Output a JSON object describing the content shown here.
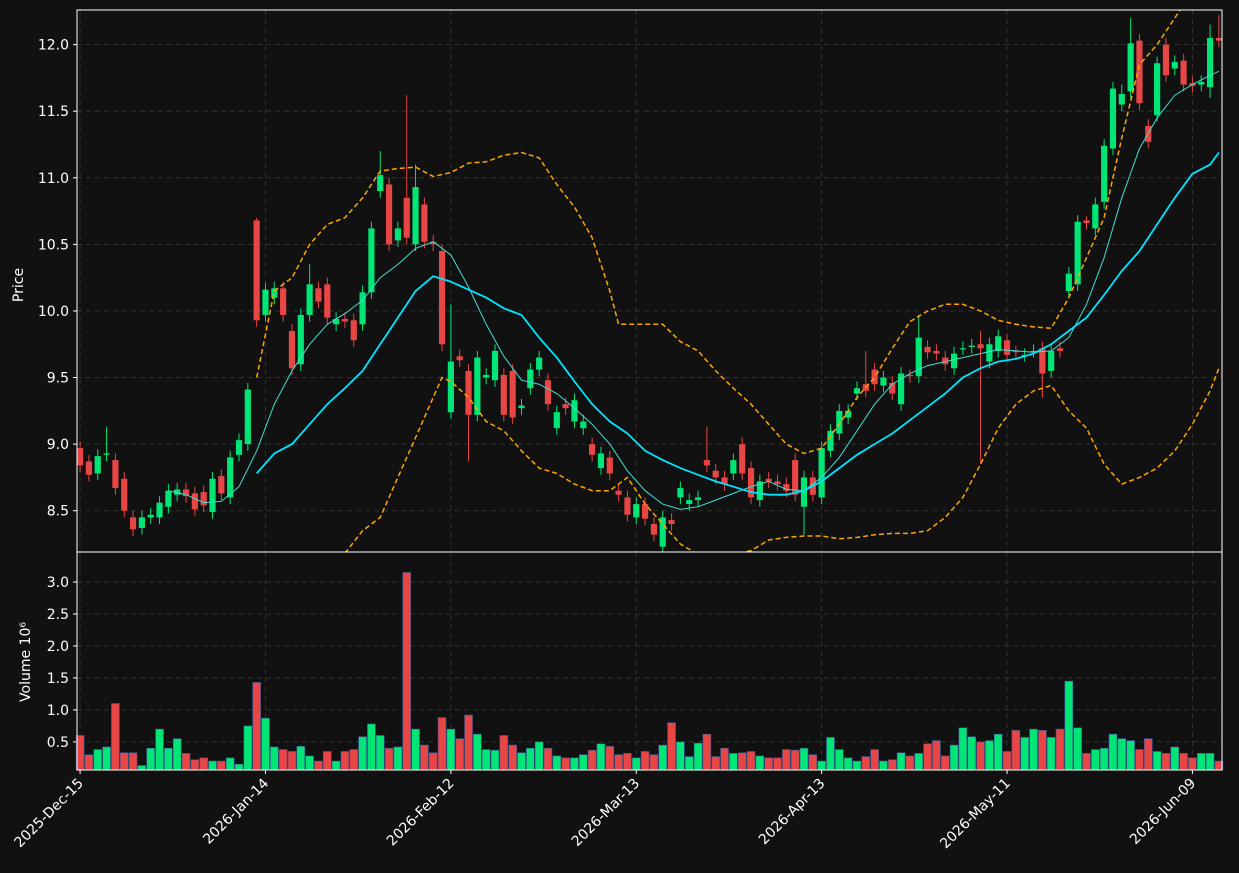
{
  "chart_data": {
    "type": "candlestick",
    "grid": true,
    "up_color": "#00e676",
    "down_color": "#e84545",
    "xlim": [
      -0.35,
      129.35
    ],
    "xticks": [
      {
        "value": 0,
        "label": "2025-Dec-15"
      },
      {
        "value": 21,
        "label": "2026-Jan-14"
      },
      {
        "value": 42,
        "label": "2026-Feb-12"
      },
      {
        "value": 63,
        "label": "2026-Mar-13"
      },
      {
        "value": 84,
        "label": "2026-Apr-13"
      },
      {
        "value": 105,
        "label": "2026-May-11"
      },
      {
        "value": 126,
        "label": "2026-Jun-09"
      }
    ],
    "ylabel": "Price",
    "ylim": [
      8.19,
      12.26
    ],
    "yticks": [
      8.5,
      {
        "value": 9.0,
        "label": "9.0"
      },
      9.5,
      {
        "value": 10.0,
        "label": "10.0"
      },
      10.5,
      {
        "value": 11.0,
        "label": "11.0"
      },
      11.5,
      {
        "value": 12.0,
        "label": "12.0"
      }
    ],
    "open": [
      8.97,
      8.87,
      8.78,
      8.92,
      8.88,
      8.74,
      8.45,
      8.37,
      8.45,
      8.45,
      8.53,
      8.62,
      8.66,
      8.63,
      8.64,
      8.49,
      8.76,
      8.6,
      8.92,
      9.0,
      10.68,
      9.97,
      10.1,
      10.17,
      9.85,
      9.6,
      9.97,
      10.17,
      10.2,
      9.9,
      9.94,
      9.93,
      9.9,
      10.14,
      10.9,
      10.95,
      10.53,
      10.85,
      10.5,
      10.8,
      10.52,
      10.45,
      9.24,
      9.66,
      9.55,
      9.22,
      9.5,
      9.48,
      9.52,
      9.55,
      9.27,
      9.42,
      9.56,
      9.48,
      9.12,
      9.3,
      9.17,
      9.12,
      9.0,
      8.82,
      8.9,
      8.65,
      8.6,
      8.45,
      8.55,
      8.4,
      8.23,
      8.43,
      8.6,
      8.55,
      8.58,
      8.88,
      8.8,
      8.75,
      8.78,
      9.0,
      8.82,
      8.58,
      8.74,
      8.72,
      8.7,
      8.88,
      8.53,
      8.75,
      8.6,
      8.95,
      9.08,
      9.2,
      9.38,
      9.45,
      9.56,
      9.44,
      9.46,
      9.3,
      9.52,
      9.51,
      9.73,
      9.7,
      9.65,
      9.57,
      9.72,
      9.73,
      9.75,
      9.62,
      9.7,
      9.78,
      9.7,
      9.67,
      9.7,
      9.72,
      9.55,
      9.72,
      10.15,
      10.2,
      10.68,
      10.62,
      10.82,
      11.22,
      11.55,
      11.65,
      12.03,
      11.39,
      11.47,
      12.0,
      11.82,
      11.88,
      11.71,
      11.7,
      11.68,
      12.05
    ],
    "high": [
      9.02,
      8.92,
      8.96,
      9.13,
      8.93,
      8.79,
      8.5,
      8.5,
      8.52,
      8.61,
      8.7,
      8.71,
      8.71,
      8.68,
      8.69,
      8.79,
      8.81,
      8.95,
      9.08,
      9.46,
      10.7,
      10.21,
      10.22,
      10.22,
      9.9,
      10.02,
      10.35,
      10.22,
      10.25,
      9.99,
      9.99,
      9.98,
      10.19,
      10.67,
      11.2,
      11.0,
      10.67,
      11.62,
      11.1,
      10.85,
      10.57,
      10.5,
      10.05,
      9.71,
      9.6,
      9.7,
      9.57,
      9.75,
      9.57,
      9.6,
      9.34,
      9.61,
      9.7,
      9.53,
      9.29,
      9.35,
      9.38,
      9.22,
      9.05,
      8.98,
      8.95,
      8.7,
      8.65,
      8.6,
      8.6,
      8.45,
      8.5,
      8.48,
      8.72,
      8.63,
      8.65,
      9.13,
      8.85,
      8.8,
      8.93,
      9.05,
      8.87,
      8.77,
      8.79,
      8.77,
      8.75,
      8.93,
      8.8,
      8.8,
      9.02,
      9.15,
      9.3,
      9.3,
      9.47,
      9.7,
      9.61,
      9.55,
      9.51,
      9.58,
      9.56,
      9.97,
      9.78,
      9.75,
      9.7,
      9.73,
      9.77,
      9.79,
      9.85,
      9.8,
      9.86,
      9.83,
      9.74,
      9.72,
      9.75,
      9.77,
      9.75,
      9.77,
      10.33,
      10.72,
      10.71,
      10.85,
      11.29,
      11.72,
      11.7,
      12.2,
      12.08,
      11.44,
      11.91,
      12.05,
      11.92,
      11.93,
      11.76,
      11.77,
      12.15,
      12.22
    ],
    "low": [
      8.79,
      8.72,
      8.73,
      8.87,
      8.62,
      8.45,
      8.31,
      8.32,
      8.4,
      8.4,
      8.48,
      8.57,
      8.56,
      8.46,
      8.49,
      8.44,
      8.58,
      8.55,
      8.87,
      8.95,
      9.88,
      9.92,
      10.05,
      9.92,
      9.52,
      9.55,
      9.92,
      10.02,
      9.9,
      9.85,
      9.87,
      9.73,
      9.85,
      10.09,
      10.85,
      10.45,
      10.48,
      10.5,
      10.45,
      10.47,
      10.45,
      9.7,
      9.19,
      9.58,
      8.87,
      9.17,
      9.45,
      9.43,
      9.17,
      9.15,
      9.22,
      9.37,
      9.51,
      9.25,
      9.07,
      9.22,
      9.12,
      9.07,
      8.87,
      8.77,
      8.73,
      8.57,
      8.42,
      8.4,
      8.39,
      8.27,
      8.18,
      8.35,
      8.55,
      8.5,
      8.53,
      8.79,
      8.7,
      8.65,
      8.73,
      8.73,
      8.55,
      8.53,
      8.67,
      8.65,
      8.6,
      8.57,
      8.32,
      8.57,
      8.55,
      8.9,
      9.03,
      9.15,
      9.33,
      9.35,
      9.4,
      9.39,
      9.33,
      9.25,
      9.46,
      9.46,
      9.64,
      9.63,
      9.55,
      9.52,
      9.67,
      9.68,
      8.85,
      9.57,
      9.65,
      9.62,
      9.64,
      9.62,
      9.65,
      9.35,
      9.5,
      9.65,
      10.1,
      10.15,
      10.61,
      10.57,
      10.77,
      11.17,
      11.5,
      11.6,
      11.51,
      11.22,
      11.42,
      11.72,
      11.77,
      11.65,
      11.64,
      11.65,
      11.6,
      11.98
    ],
    "close": [
      8.84,
      8.77,
      8.91,
      8.93,
      8.67,
      8.5,
      8.36,
      8.45,
      8.47,
      8.56,
      8.65,
      8.66,
      8.61,
      8.51,
      8.54,
      8.74,
      8.63,
      8.9,
      9.03,
      9.41,
      9.93,
      10.16,
      10.17,
      9.97,
      9.57,
      9.97,
      10.2,
      10.07,
      9.95,
      9.94,
      9.92,
      9.78,
      10.14,
      10.62,
      11.02,
      10.5,
      10.62,
      10.55,
      10.93,
      10.52,
      10.5,
      9.75,
      9.62,
      9.63,
      9.22,
      9.65,
      9.52,
      9.7,
      9.22,
      9.2,
      9.29,
      9.56,
      9.65,
      9.3,
      9.24,
      9.27,
      9.33,
      9.17,
      8.92,
      8.93,
      8.78,
      8.62,
      8.47,
      8.55,
      8.44,
      8.32,
      8.45,
      8.4,
      8.67,
      8.58,
      8.6,
      8.84,
      8.75,
      8.7,
      8.88,
      8.78,
      8.6,
      8.72,
      8.72,
      8.7,
      8.65,
      8.62,
      8.75,
      8.62,
      8.97,
      9.1,
      9.25,
      9.25,
      9.42,
      9.4,
      9.45,
      9.5,
      9.38,
      9.53,
      9.51,
      9.8,
      9.69,
      9.68,
      9.6,
      9.68,
      9.72,
      9.74,
      9.72,
      9.75,
      9.81,
      9.67,
      9.69,
      9.67,
      9.7,
      9.53,
      9.7,
      9.7,
      10.28,
      10.67,
      10.66,
      10.8,
      11.24,
      11.67,
      11.63,
      12.01,
      11.56,
      11.27,
      11.86,
      11.77,
      11.87,
      11.7,
      11.69,
      11.72,
      12.05,
      12.03
    ],
    "lines": [
      {
        "color": "#40e0d0",
        "width": 1,
        "dashed": false,
        "x": [
          10,
          12,
          14,
          16,
          18,
          20,
          22,
          24,
          26,
          28,
          30,
          32,
          34,
          36,
          38,
          40,
          42,
          44,
          46,
          48,
          50,
          52,
          54,
          56,
          58,
          60,
          62,
          64,
          66,
          68,
          70,
          72,
          74,
          76,
          78,
          80,
          82,
          84,
          86,
          88,
          90,
          92,
          94,
          96,
          98,
          100,
          102,
          104,
          106,
          108,
          110,
          112,
          114,
          116,
          118,
          120,
          122,
          124,
          126,
          128,
          129
        ],
        "values": [
          8.65,
          8.62,
          8.56,
          8.57,
          8.68,
          8.95,
          9.3,
          9.55,
          9.75,
          9.9,
          9.98,
          10.08,
          10.25,
          10.35,
          10.47,
          10.52,
          10.42,
          10.18,
          9.9,
          9.66,
          9.48,
          9.45,
          9.38,
          9.27,
          9.15,
          9.0,
          8.8,
          8.65,
          8.55,
          8.51,
          8.53,
          8.58,
          8.63,
          8.68,
          8.72,
          8.66,
          8.65,
          8.75,
          8.9,
          9.1,
          9.3,
          9.45,
          9.53,
          9.59,
          9.62,
          9.65,
          9.68,
          9.71,
          9.7,
          9.69,
          9.7,
          9.8,
          10.05,
          10.4,
          10.85,
          11.22,
          11.45,
          11.62,
          11.7,
          11.77,
          11.8
        ]
      },
      {
        "color": "#00e5ff",
        "width": 1.8,
        "dashed": false,
        "x": [
          20,
          22,
          24,
          26,
          28,
          30,
          32,
          34,
          36,
          38,
          40,
          42,
          44,
          46,
          48,
          50,
          52,
          54,
          56,
          58,
          60,
          62,
          64,
          66,
          68,
          70,
          72,
          74,
          76,
          78,
          80,
          82,
          84,
          86,
          88,
          90,
          92,
          94,
          96,
          98,
          100,
          102,
          104,
          106,
          108,
          110,
          112,
          114,
          116,
          118,
          120,
          122,
          124,
          126,
          128,
          129
        ],
        "values": [
          8.78,
          8.93,
          9.0,
          9.15,
          9.3,
          9.42,
          9.55,
          9.75,
          9.95,
          10.15,
          10.26,
          10.22,
          10.16,
          10.1,
          10.02,
          9.97,
          9.8,
          9.65,
          9.47,
          9.3,
          9.17,
          9.08,
          8.95,
          8.88,
          8.82,
          8.77,
          8.72,
          8.68,
          8.64,
          8.62,
          8.62,
          8.65,
          8.72,
          8.82,
          8.92,
          9.0,
          9.08,
          9.18,
          9.28,
          9.38,
          9.5,
          9.57,
          9.62,
          9.64,
          9.68,
          9.75,
          9.85,
          9.95,
          10.12,
          10.3,
          10.45,
          10.65,
          10.85,
          11.03,
          11.1,
          11.19
        ]
      },
      {
        "color": "#ffa500",
        "width": 1.5,
        "dashed": true,
        "x": [
          20,
          22,
          24,
          26,
          28,
          30,
          32,
          34,
          36,
          38,
          40,
          42,
          44,
          46,
          48,
          50,
          52,
          54,
          56,
          58,
          60,
          61,
          64,
          66,
          68,
          70,
          72,
          74,
          76,
          78,
          80,
          82,
          84,
          86,
          88,
          90,
          92,
          94,
          96,
          98,
          100,
          102,
          104,
          106,
          108,
          110,
          112,
          114,
          116,
          118,
          120,
          122,
          124,
          125
        ],
        "values": [
          9.5,
          10.15,
          10.25,
          10.5,
          10.65,
          10.7,
          10.85,
          11.05,
          11.07,
          11.08,
          11.01,
          11.04,
          11.11,
          11.12,
          11.17,
          11.19,
          11.15,
          10.95,
          10.78,
          10.55,
          10.15,
          9.9,
          9.9,
          9.9,
          9.77,
          9.7,
          9.55,
          9.42,
          9.3,
          9.15,
          9.0,
          8.93,
          8.97,
          9.15,
          9.35,
          9.5,
          9.72,
          9.92,
          10.0,
          10.05,
          10.05,
          10.0,
          9.93,
          9.9,
          9.88,
          9.87,
          10.1,
          10.4,
          10.7,
          11.3,
          11.85,
          12.0,
          12.2,
          12.3
        ]
      },
      {
        "color": "#ffa500",
        "width": 1.5,
        "dashed": true,
        "x": [
          30,
          32,
          34,
          36,
          38,
          40,
          41,
          42,
          44,
          46,
          48,
          50,
          52,
          54,
          56,
          58,
          60,
          62,
          64,
          66,
          68,
          70,
          72,
          74,
          76,
          78,
          80,
          82,
          84,
          86,
          88,
          90,
          92,
          94,
          96,
          98,
          100,
          102,
          104,
          106,
          108,
          110,
          112,
          114,
          116,
          118,
          120,
          122,
          124,
          126,
          128,
          129
        ],
        "values": [
          8.18,
          8.35,
          8.45,
          8.75,
          9.05,
          9.35,
          9.5,
          9.47,
          9.35,
          9.17,
          9.1,
          8.95,
          8.82,
          8.78,
          8.7,
          8.65,
          8.65,
          8.75,
          8.55,
          8.4,
          8.25,
          8.17,
          8.14,
          8.17,
          8.2,
          8.28,
          8.3,
          8.31,
          8.31,
          8.29,
          8.3,
          8.32,
          8.33,
          8.33,
          8.35,
          8.45,
          8.6,
          8.85,
          9.12,
          9.3,
          9.4,
          9.44,
          9.25,
          9.12,
          8.85,
          8.7,
          8.75,
          8.82,
          8.95,
          9.15,
          9.4,
          9.57
        ]
      }
    ],
    "volume": {
      "ylabel": "Volume  10⁶",
      "ylim": [
        0.06,
        3.47
      ],
      "yticks": [
        0.5,
        {
          "value": 1.0,
          "label": "1.0"
        },
        1.5,
        {
          "value": 2.0,
          "label": "2.0"
        },
        2.5,
        {
          "value": 3.0,
          "label": "3.0"
        }
      ],
      "values": [
        0.6,
        0.3,
        0.38,
        0.42,
        1.1,
        0.33,
        0.33,
        0.13,
        0.4,
        0.7,
        0.4,
        0.55,
        0.32,
        0.22,
        0.25,
        0.2,
        0.2,
        0.25,
        0.15,
        0.75,
        1.43,
        0.87,
        0.42,
        0.38,
        0.35,
        0.43,
        0.28,
        0.2,
        0.35,
        0.2,
        0.35,
        0.38,
        0.58,
        0.78,
        0.6,
        0.4,
        0.42,
        3.15,
        0.7,
        0.45,
        0.33,
        0.88,
        0.7,
        0.55,
        0.92,
        0.62,
        0.38,
        0.37,
        0.6,
        0.45,
        0.33,
        0.4,
        0.5,
        0.4,
        0.28,
        0.25,
        0.25,
        0.3,
        0.37,
        0.47,
        0.43,
        0.3,
        0.32,
        0.25,
        0.35,
        0.3,
        0.45,
        0.8,
        0.5,
        0.27,
        0.48,
        0.62,
        0.27,
        0.4,
        0.32,
        0.33,
        0.35,
        0.28,
        0.25,
        0.25,
        0.38,
        0.37,
        0.4,
        0.3,
        0.2,
        0.57,
        0.38,
        0.25,
        0.2,
        0.27,
        0.38,
        0.2,
        0.22,
        0.33,
        0.28,
        0.32,
        0.47,
        0.52,
        0.28,
        0.45,
        0.72,
        0.58,
        0.5,
        0.52,
        0.62,
        0.35,
        0.68,
        0.57,
        0.7,
        0.68,
        0.57,
        0.7,
        1.45,
        0.72,
        0.32,
        0.38,
        0.4,
        0.62,
        0.55,
        0.52,
        0.38,
        0.55,
        0.35,
        0.32,
        0.42,
        0.32,
        0.25,
        0.32,
        0.32,
        0.2
      ]
    }
  }
}
